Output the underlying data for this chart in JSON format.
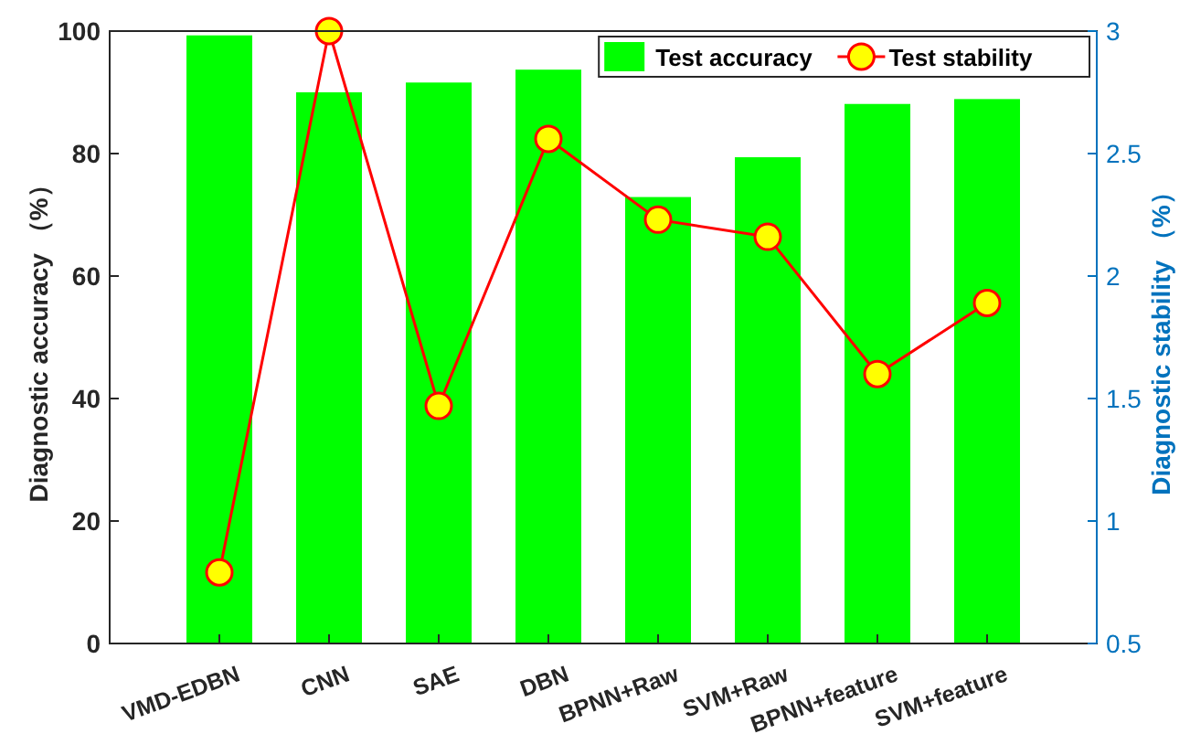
{
  "chart_data": {
    "type": "bar",
    "categories": [
      "VMD-EDBN",
      "CNN",
      "SAE",
      "DBN",
      "BPNN+Raw",
      "SVM+Raw",
      "BPNN+feature",
      "SVM+feature"
    ],
    "series": [
      {
        "name": "Test accuracy",
        "color": "#00ff00",
        "values": [
          99.3,
          90.0,
          91.6,
          93.7,
          72.9,
          79.4,
          88.1,
          88.9
        ]
      },
      {
        "name": "Test stability",
        "type": "line",
        "axis": "y2",
        "color": "#ff0000",
        "marker": "circle",
        "values": [
          0.79,
          3.0,
          1.47,
          2.56,
          2.23,
          2.16,
          1.6,
          1.89
        ]
      }
    ],
    "ylabel": "Diagnostic accuracy （%）",
    "y2label": "Diagnostic stability （%）",
    "ylim": [
      0,
      100
    ],
    "yticks": [
      0,
      20,
      40,
      60,
      80,
      100
    ],
    "y2lim": [
      0.5,
      3
    ],
    "y2ticks": [
      0.5,
      1,
      1.5,
      2,
      2.5,
      3
    ],
    "grid": false,
    "legend": "top right"
  }
}
